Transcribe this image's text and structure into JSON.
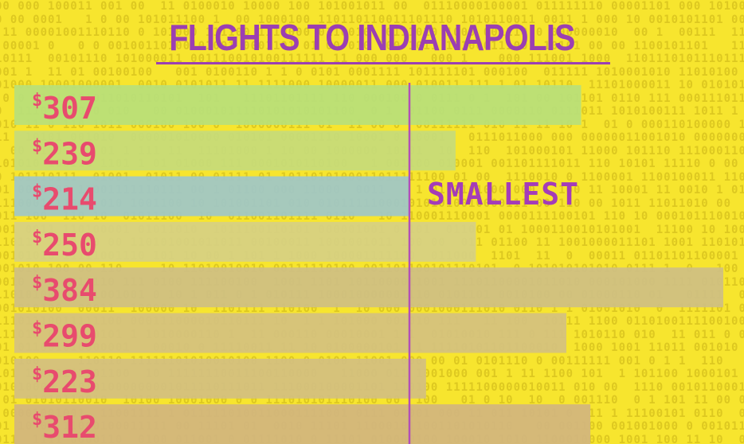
{
  "chart_data": {
    "type": "bar",
    "orientation": "horizontal",
    "title": "FLIGHTS TO INDIANAPOLIS",
    "categories": [
      "$307",
      "$239",
      "$214",
      "$250",
      "$384",
      "$299",
      "$223",
      "$312"
    ],
    "values": [
      307,
      239,
      214,
      250,
      384,
      299,
      223,
      312
    ],
    "value_prefix": "$",
    "bar_colors": [
      "#b8e07a",
      "#c6dc7a",
      "#9fc7c7",
      "#d6d183",
      "#cfc083",
      "#d4c27f",
      "#d3bf80",
      "#d2b67e"
    ],
    "label_color": "#e84b6e",
    "reference_line": {
      "value": 214,
      "color": "#b24fb8"
    },
    "annotation": {
      "text": "SMALLEST",
      "category_index": 2
    },
    "xlim": [
      0,
      384
    ],
    "grid": false,
    "legend": "none"
  },
  "colors": {
    "background": "#f7e52e",
    "title": "#9b3fb2",
    "binary_texture": "#d9c41e"
  }
}
